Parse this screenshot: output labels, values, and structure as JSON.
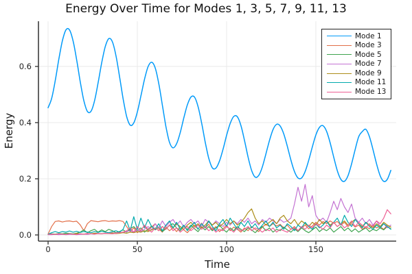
{
  "chart_data": {
    "type": "line",
    "title": "Energy Over Time for Modes 1, 3, 5, 7, 9, 11, 13",
    "xlabel": "Time",
    "ylabel": "Energy",
    "xlim": [
      -5.4,
      195
    ],
    "ylim": [
      -0.022,
      0.761
    ],
    "x_ticks": [
      0,
      50,
      100,
      150
    ],
    "x_tick_labels": [
      "0",
      "50",
      "100",
      "150"
    ],
    "y_ticks": [
      0.0,
      0.2,
      0.4,
      0.6
    ],
    "y_tick_labels": [
      "0.0",
      "0.2",
      "0.4",
      "0.6"
    ],
    "grid": true,
    "legend_position": "top-right",
    "x_start": 0,
    "x_step": 2,
    "series": [
      {
        "name": "Mode 1",
        "color": "#009af9",
        "smooth": true,
        "values": [
          0.453,
          0.486,
          0.549,
          0.625,
          0.691,
          0.73,
          0.73,
          0.691,
          0.624,
          0.546,
          0.479,
          0.44,
          0.44,
          0.477,
          0.541,
          0.612,
          0.67,
          0.699,
          0.688,
          0.639,
          0.565,
          0.486,
          0.422,
          0.391,
          0.399,
          0.438,
          0.495,
          0.554,
          0.599,
          0.615,
          0.595,
          0.539,
          0.463,
          0.386,
          0.33,
          0.31,
          0.325,
          0.364,
          0.416,
          0.463,
          0.491,
          0.491,
          0.457,
          0.399,
          0.331,
          0.273,
          0.239,
          0.238,
          0.263,
          0.305,
          0.355,
          0.397,
          0.422,
          0.421,
          0.39,
          0.337,
          0.278,
          0.23,
          0.206,
          0.212,
          0.242,
          0.288,
          0.336,
          0.375,
          0.394,
          0.388,
          0.36,
          0.316,
          0.267,
          0.226,
          0.203,
          0.203,
          0.226,
          0.266,
          0.313,
          0.356,
          0.383,
          0.389,
          0.369,
          0.328,
          0.277,
          0.229,
          0.198,
          0.191,
          0.211,
          0.253,
          0.304,
          0.35,
          0.368,
          0.376,
          0.35,
          0.304,
          0.253,
          0.211,
          0.191,
          0.198,
          0.23
        ]
      },
      {
        "name": "Mode 3",
        "color": "#e26e47",
        "smooth": false,
        "values": [
          0.003,
          0.03,
          0.048,
          0.05,
          0.046,
          0.049,
          0.05,
          0.047,
          0.049,
          0.036,
          0.015,
          0.04,
          0.051,
          0.049,
          0.047,
          0.05,
          0.051,
          0.048,
          0.05,
          0.049,
          0.051,
          0.048,
          0.03,
          0.012,
          0.025,
          0.008,
          0.018,
          0.032,
          0.015,
          0.028,
          0.04,
          0.022,
          0.01,
          0.028,
          0.015,
          0.025,
          0.012,
          0.03,
          0.018,
          0.008,
          0.022,
          0.035,
          0.02,
          0.042,
          0.025,
          0.038,
          0.018,
          0.03,
          0.012,
          0.022,
          0.035,
          0.015,
          0.028,
          0.02,
          0.01,
          0.025,
          0.015,
          0.03,
          0.02,
          0.012,
          0.028,
          0.038,
          0.03,
          0.04,
          0.032,
          0.038,
          0.025,
          0.035,
          0.02,
          0.03,
          0.015,
          0.025,
          0.035,
          0.022,
          0.032,
          0.045,
          0.035,
          0.048,
          0.04,
          0.05,
          0.042,
          0.048,
          0.035,
          0.045,
          0.03,
          0.04,
          0.028,
          0.035,
          0.02,
          0.03,
          0.022,
          0.035,
          0.025,
          0.03,
          0.02,
          0.035,
          0.028
        ]
      },
      {
        "name": "Mode 5",
        "color": "#3da44e",
        "smooth": false,
        "values": [
          0.002,
          0.004,
          0.003,
          0.005,
          0.004,
          0.006,
          0.005,
          0.004,
          0.006,
          0.01,
          0.018,
          0.008,
          0.015,
          0.02,
          0.01,
          0.018,
          0.012,
          0.02,
          0.015,
          0.008,
          0.012,
          0.018,
          0.01,
          0.022,
          0.03,
          0.015,
          0.025,
          0.01,
          0.02,
          0.032,
          0.018,
          0.028,
          0.012,
          0.022,
          0.035,
          0.04,
          0.025,
          0.015,
          0.03,
          0.02,
          0.035,
          0.022,
          0.012,
          0.028,
          0.018,
          0.03,
          0.015,
          0.025,
          0.035,
          0.02,
          0.01,
          0.025,
          0.015,
          0.03,
          0.02,
          0.012,
          0.025,
          0.018,
          0.008,
          0.02,
          0.03,
          0.015,
          0.025,
          0.01,
          0.02,
          0.015,
          0.028,
          0.018,
          0.01,
          0.022,
          0.012,
          0.025,
          0.015,
          0.008,
          0.018,
          0.028,
          0.012,
          0.022,
          0.015,
          0.025,
          0.01,
          0.02,
          0.03,
          0.015,
          0.025,
          0.012,
          0.022,
          0.01,
          0.018,
          0.025,
          0.012,
          0.02,
          0.015,
          0.025,
          0.018,
          0.03,
          0.022
        ]
      },
      {
        "name": "Mode 7",
        "color": "#c371d2",
        "smooth": false,
        "values": [
          0.001,
          0.001,
          0.002,
          0.001,
          0.002,
          0.001,
          0.002,
          0.002,
          0.001,
          0.002,
          0.003,
          0.002,
          0.004,
          0.003,
          0.005,
          0.004,
          0.006,
          0.005,
          0.008,
          0.006,
          0.01,
          0.008,
          0.012,
          0.015,
          0.01,
          0.018,
          0.012,
          0.02,
          0.03,
          0.018,
          0.04,
          0.025,
          0.05,
          0.03,
          0.045,
          0.055,
          0.035,
          0.05,
          0.028,
          0.045,
          0.055,
          0.04,
          0.05,
          0.03,
          0.055,
          0.045,
          0.035,
          0.05,
          0.04,
          0.03,
          0.045,
          0.035,
          0.05,
          0.04,
          0.055,
          0.045,
          0.06,
          0.04,
          0.05,
          0.035,
          0.055,
          0.045,
          0.06,
          0.05,
          0.04,
          0.055,
          0.045,
          0.05,
          0.06,
          0.11,
          0.17,
          0.12,
          0.18,
          0.1,
          0.14,
          0.07,
          0.05,
          0.06,
          0.045,
          0.08,
          0.12,
          0.09,
          0.13,
          0.1,
          0.08,
          0.11,
          0.06,
          0.045,
          0.06,
          0.04,
          0.055,
          0.035,
          0.05,
          0.03,
          0.04,
          0.025,
          0.035
        ]
      },
      {
        "name": "Mode 9",
        "color": "#ac8d18",
        "smooth": false,
        "values": [
          0.002,
          0.003,
          0.002,
          0.004,
          0.003,
          0.002,
          0.004,
          0.003,
          0.005,
          0.004,
          0.003,
          0.005,
          0.004,
          0.006,
          0.005,
          0.004,
          0.006,
          0.005,
          0.007,
          0.005,
          0.006,
          0.008,
          0.006,
          0.01,
          0.008,
          0.012,
          0.01,
          0.015,
          0.012,
          0.018,
          0.025,
          0.015,
          0.03,
          0.02,
          0.035,
          0.025,
          0.04,
          0.03,
          0.02,
          0.035,
          0.045,
          0.03,
          0.04,
          0.025,
          0.035,
          0.05,
          0.035,
          0.045,
          0.03,
          0.04,
          0.055,
          0.04,
          0.05,
          0.035,
          0.045,
          0.06,
          0.08,
          0.093,
          0.06,
          0.04,
          0.05,
          0.035,
          0.045,
          0.055,
          0.04,
          0.06,
          0.07,
          0.05,
          0.04,
          0.055,
          0.035,
          0.05,
          0.04,
          0.03,
          0.045,
          0.035,
          0.055,
          0.04,
          0.05,
          0.035,
          0.045,
          0.03,
          0.04,
          0.05,
          0.035,
          0.045,
          0.055,
          0.04,
          0.03,
          0.045,
          0.035,
          0.025,
          0.04,
          0.03,
          0.045,
          0.035,
          0.028
        ]
      },
      {
        "name": "Mode 11",
        "color": "#00a9ad",
        "smooth": false,
        "values": [
          0.003,
          0.008,
          0.012,
          0.008,
          0.012,
          0.01,
          0.014,
          0.01,
          0.013,
          0.009,
          0.012,
          0.01,
          0.008,
          0.012,
          0.009,
          0.013,
          0.01,
          0.008,
          0.012,
          0.015,
          0.01,
          0.02,
          0.05,
          0.015,
          0.065,
          0.02,
          0.06,
          0.025,
          0.055,
          0.03,
          0.02,
          0.04,
          0.015,
          0.035,
          0.05,
          0.025,
          0.045,
          0.02,
          0.035,
          0.015,
          0.03,
          0.045,
          0.02,
          0.04,
          0.025,
          0.05,
          0.03,
          0.015,
          0.04,
          0.055,
          0.03,
          0.06,
          0.04,
          0.02,
          0.045,
          0.03,
          0.05,
          0.025,
          0.04,
          0.02,
          0.035,
          0.05,
          0.03,
          0.045,
          0.025,
          0.035,
          0.02,
          0.04,
          0.03,
          0.015,
          0.035,
          0.025,
          0.045,
          0.03,
          0.02,
          0.04,
          0.025,
          0.035,
          0.05,
          0.03,
          0.045,
          0.06,
          0.035,
          0.07,
          0.045,
          0.03,
          0.055,
          0.04,
          0.025,
          0.045,
          0.03,
          0.02,
          0.035,
          0.025,
          0.04,
          0.03,
          0.02
        ]
      },
      {
        "name": "Mode 13",
        "color": "#ed5e93",
        "smooth": false,
        "values": [
          0.002,
          0.003,
          0.002,
          0.004,
          0.003,
          0.002,
          0.004,
          0.003,
          0.002,
          0.004,
          0.003,
          0.005,
          0.004,
          0.003,
          0.005,
          0.004,
          0.006,
          0.005,
          0.004,
          0.006,
          0.008,
          0.01,
          0.015,
          0.025,
          0.01,
          0.03,
          0.015,
          0.035,
          0.02,
          0.01,
          0.025,
          0.015,
          0.03,
          0.02,
          0.035,
          0.015,
          0.025,
          0.01,
          0.02,
          0.03,
          0.015,
          0.025,
          0.035,
          0.02,
          0.03,
          0.015,
          0.025,
          0.01,
          0.02,
          0.015,
          0.03,
          0.02,
          0.01,
          0.025,
          0.015,
          0.02,
          0.03,
          0.015,
          0.025,
          0.02,
          0.01,
          0.02,
          0.015,
          0.025,
          0.01,
          0.02,
          0.015,
          0.01,
          0.02,
          0.025,
          0.015,
          0.03,
          0.02,
          0.035,
          0.025,
          0.04,
          0.03,
          0.02,
          0.035,
          0.025,
          0.045,
          0.03,
          0.04,
          0.025,
          0.035,
          0.05,
          0.03,
          0.045,
          0.035,
          0.025,
          0.04,
          0.03,
          0.05,
          0.04,
          0.06,
          0.09,
          0.075
        ]
      }
    ]
  }
}
